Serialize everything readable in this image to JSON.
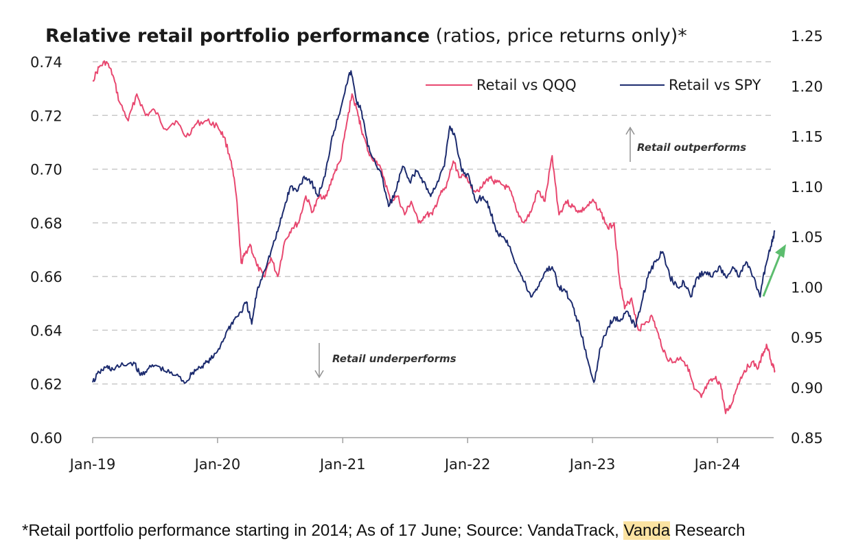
{
  "chart_data": {
    "type": "line",
    "title_bold": "Relative retail portfolio performance",
    "title_rest": " (ratios, price returns only)*",
    "x_tick_labels": [
      "Jan-19",
      "Jan-20",
      "Jan-21",
      "Jan-22",
      "Jan-23",
      "Jan-24"
    ],
    "x_range": [
      "2019-01",
      "2024-06"
    ],
    "y_left": {
      "ticks": [
        "0.60",
        "0.62",
        "0.64",
        "0.66",
        "0.68",
        "0.70",
        "0.72",
        "0.74"
      ],
      "range": [
        0.6,
        0.74
      ]
    },
    "y_right": {
      "ticks": [
        "0.85",
        "0.90",
        "0.95",
        "1.00",
        "1.05",
        "1.10",
        "1.15",
        "1.20",
        "1.25"
      ],
      "range": [
        0.85,
        1.25
      ]
    },
    "grid": "horizontal dashed",
    "legend_placement": "top-right",
    "series": [
      {
        "name": "Retail vs QQQ",
        "axis": "left",
        "color": "#e8476f",
        "points": [
          [
            "2019-01-01",
            0.733
          ],
          [
            "2019-01-20",
            0.738
          ],
          [
            "2019-02-10",
            0.74
          ],
          [
            "2019-03-01",
            0.735
          ],
          [
            "2019-03-20",
            0.725
          ],
          [
            "2019-04-15",
            0.718
          ],
          [
            "2019-05-10",
            0.728
          ],
          [
            "2019-06-05",
            0.72
          ],
          [
            "2019-07-01",
            0.722
          ],
          [
            "2019-08-01",
            0.715
          ],
          [
            "2019-09-01",
            0.718
          ],
          [
            "2019-10-01",
            0.712
          ],
          [
            "2019-11-01",
            0.717
          ],
          [
            "2019-12-01",
            0.718
          ],
          [
            "2020-01-01",
            0.716
          ],
          [
            "2020-01-20",
            0.712
          ],
          [
            "2020-02-10",
            0.703
          ],
          [
            "2020-02-25",
            0.69
          ],
          [
            "2020-03-10",
            0.665
          ],
          [
            "2020-03-20",
            0.668
          ],
          [
            "2020-04-05",
            0.672
          ],
          [
            "2020-04-25",
            0.664
          ],
          [
            "2020-05-15",
            0.66
          ],
          [
            "2020-06-05",
            0.667
          ],
          [
            "2020-06-25",
            0.66
          ],
          [
            "2020-07-15",
            0.673
          ],
          [
            "2020-08-05",
            0.678
          ],
          [
            "2020-08-25",
            0.68
          ],
          [
            "2020-09-15",
            0.69
          ],
          [
            "2020-10-05",
            0.684
          ],
          [
            "2020-10-25",
            0.69
          ],
          [
            "2020-11-15",
            0.69
          ],
          [
            "2020-12-05",
            0.698
          ],
          [
            "2020-12-25",
            0.703
          ],
          [
            "2021-01-10",
            0.715
          ],
          [
            "2021-01-28",
            0.728
          ],
          [
            "2021-02-15",
            0.72
          ],
          [
            "2021-03-01",
            0.713
          ],
          [
            "2021-03-20",
            0.705
          ],
          [
            "2021-04-10",
            0.703
          ],
          [
            "2021-05-01",
            0.697
          ],
          [
            "2021-05-20",
            0.688
          ],
          [
            "2021-06-10",
            0.69
          ],
          [
            "2021-07-01",
            0.683
          ],
          [
            "2021-07-20",
            0.688
          ],
          [
            "2021-08-10",
            0.68
          ],
          [
            "2021-09-01",
            0.683
          ],
          [
            "2021-09-20",
            0.683
          ],
          [
            "2021-10-10",
            0.69
          ],
          [
            "2021-10-30",
            0.693
          ],
          [
            "2021-11-20",
            0.703
          ],
          [
            "2021-12-10",
            0.697
          ],
          [
            "2021-12-30",
            0.697
          ],
          [
            "2022-01-20",
            0.692
          ],
          [
            "2022-02-10",
            0.693
          ],
          [
            "2022-03-05",
            0.697
          ],
          [
            "2022-03-25",
            0.695
          ],
          [
            "2022-04-15",
            0.694
          ],
          [
            "2022-05-05",
            0.692
          ],
          [
            "2022-05-25",
            0.684
          ],
          [
            "2022-06-15",
            0.68
          ],
          [
            "2022-07-05",
            0.684
          ],
          [
            "2022-07-25",
            0.692
          ],
          [
            "2022-08-15",
            0.688
          ],
          [
            "2022-09-05",
            0.705
          ],
          [
            "2022-09-25",
            0.683
          ],
          [
            "2022-10-15",
            0.688
          ],
          [
            "2022-11-05",
            0.686
          ],
          [
            "2022-11-25",
            0.684
          ],
          [
            "2022-12-15",
            0.686
          ],
          [
            "2023-01-05",
            0.688
          ],
          [
            "2023-01-25",
            0.684
          ],
          [
            "2023-02-15",
            0.678
          ],
          [
            "2023-03-05",
            0.68
          ],
          [
            "2023-03-20",
            0.66
          ],
          [
            "2023-04-05",
            0.648
          ],
          [
            "2023-04-25",
            0.652
          ],
          [
            "2023-05-15",
            0.64
          ],
          [
            "2023-06-05",
            0.643
          ],
          [
            "2023-06-25",
            0.645
          ],
          [
            "2023-07-15",
            0.637
          ],
          [
            "2023-08-05",
            0.63
          ],
          [
            "2023-08-25",
            0.628
          ],
          [
            "2023-09-15",
            0.63
          ],
          [
            "2023-10-05",
            0.627
          ],
          [
            "2023-10-25",
            0.618
          ],
          [
            "2023-11-15",
            0.615
          ],
          [
            "2023-12-05",
            0.62
          ],
          [
            "2023-12-25",
            0.622
          ],
          [
            "2024-01-10",
            0.62
          ],
          [
            "2024-01-25",
            0.609
          ],
          [
            "2024-02-10",
            0.612
          ],
          [
            "2024-03-01",
            0.62
          ],
          [
            "2024-03-20",
            0.625
          ],
          [
            "2024-04-10",
            0.628
          ],
          [
            "2024-04-30",
            0.626
          ],
          [
            "2024-05-15",
            0.632
          ],
          [
            "2024-05-25",
            0.634
          ],
          [
            "2024-06-10",
            0.627
          ],
          [
            "2024-06-17",
            0.625
          ]
        ]
      },
      {
        "name": "Retail vs SPY",
        "axis": "right",
        "color": "#1c2b6e",
        "points": [
          [
            "2019-01-01",
            0.905
          ],
          [
            "2019-01-20",
            0.915
          ],
          [
            "2019-02-10",
            0.92
          ],
          [
            "2019-03-01",
            0.918
          ],
          [
            "2019-04-01",
            0.922
          ],
          [
            "2019-05-01",
            0.925
          ],
          [
            "2019-05-20",
            0.912
          ],
          [
            "2019-06-10",
            0.918
          ],
          [
            "2019-07-05",
            0.922
          ],
          [
            "2019-08-01",
            0.916
          ],
          [
            "2019-09-01",
            0.912
          ],
          [
            "2019-10-01",
            0.905
          ],
          [
            "2019-10-20",
            0.915
          ],
          [
            "2019-11-10",
            0.92
          ],
          [
            "2019-12-01",
            0.925
          ],
          [
            "2019-12-20",
            0.93
          ],
          [
            "2020-01-10",
            0.942
          ],
          [
            "2020-02-01",
            0.958
          ],
          [
            "2020-02-20",
            0.968
          ],
          [
            "2020-03-10",
            0.975
          ],
          [
            "2020-03-25",
            0.985
          ],
          [
            "2020-04-10",
            0.963
          ],
          [
            "2020-04-25",
            0.995
          ],
          [
            "2020-05-15",
            1.015
          ],
          [
            "2020-06-05",
            1.035
          ],
          [
            "2020-06-25",
            1.055
          ],
          [
            "2020-07-15",
            1.08
          ],
          [
            "2020-08-01",
            1.1
          ],
          [
            "2020-08-20",
            1.095
          ],
          [
            "2020-09-10",
            1.11
          ],
          [
            "2020-10-01",
            1.105
          ],
          [
            "2020-10-20",
            1.09
          ],
          [
            "2020-11-10",
            1.11
          ],
          [
            "2020-12-01",
            1.15
          ],
          [
            "2020-12-20",
            1.17
          ],
          [
            "2021-01-10",
            1.2
          ],
          [
            "2021-01-25",
            1.215
          ],
          [
            "2021-02-10",
            1.185
          ],
          [
            "2021-02-25",
            1.175
          ],
          [
            "2021-03-15",
            1.14
          ],
          [
            "2021-04-05",
            1.125
          ],
          [
            "2021-04-25",
            1.11
          ],
          [
            "2021-05-15",
            1.08
          ],
          [
            "2021-06-05",
            1.095
          ],
          [
            "2021-06-25",
            1.12
          ],
          [
            "2021-07-15",
            1.105
          ],
          [
            "2021-08-05",
            1.115
          ],
          [
            "2021-08-25",
            1.105
          ],
          [
            "2021-09-15",
            1.09
          ],
          [
            "2021-10-05",
            1.105
          ],
          [
            "2021-10-25",
            1.12
          ],
          [
            "2021-11-10",
            1.16
          ],
          [
            "2021-11-25",
            1.15
          ],
          [
            "2021-12-15",
            1.115
          ],
          [
            "2022-01-05",
            1.11
          ],
          [
            "2022-01-25",
            1.085
          ],
          [
            "2022-02-15",
            1.09
          ],
          [
            "2022-03-05",
            1.08
          ],
          [
            "2022-03-25",
            1.055
          ],
          [
            "2022-04-15",
            1.05
          ],
          [
            "2022-05-05",
            1.04
          ],
          [
            "2022-05-25",
            1.02
          ],
          [
            "2022-06-15",
            1.005
          ],
          [
            "2022-07-05",
            0.99
          ],
          [
            "2022-07-25",
            1.0
          ],
          [
            "2022-08-15",
            1.015
          ],
          [
            "2022-09-05",
            1.02
          ],
          [
            "2022-09-25",
            1.0
          ],
          [
            "2022-10-15",
            0.995
          ],
          [
            "2022-11-05",
            0.98
          ],
          [
            "2022-11-25",
            0.96
          ],
          [
            "2022-12-15",
            0.93
          ],
          [
            "2023-01-05",
            0.905
          ],
          [
            "2023-01-25",
            0.94
          ],
          [
            "2023-02-15",
            0.96
          ],
          [
            "2023-03-05",
            0.97
          ],
          [
            "2023-03-25",
            0.968
          ],
          [
            "2023-04-15",
            0.975
          ],
          [
            "2023-05-05",
            0.96
          ],
          [
            "2023-05-25",
            0.985
          ],
          [
            "2023-06-15",
            1.015
          ],
          [
            "2023-07-05",
            1.025
          ],
          [
            "2023-07-25",
            1.035
          ],
          [
            "2023-08-15",
            1.01
          ],
          [
            "2023-09-05",
            1.0
          ],
          [
            "2023-09-25",
            1.005
          ],
          [
            "2023-10-15",
            0.99
          ],
          [
            "2023-11-05",
            1.01
          ],
          [
            "2023-11-25",
            1.015
          ],
          [
            "2023-12-15",
            1.01
          ],
          [
            "2024-01-05",
            1.02
          ],
          [
            "2024-01-25",
            1.01
          ],
          [
            "2024-02-15",
            1.02
          ],
          [
            "2024-03-05",
            1.01
          ],
          [
            "2024-03-25",
            1.025
          ],
          [
            "2024-04-15",
            1.01
          ],
          [
            "2024-05-05",
            0.99
          ],
          [
            "2024-05-20",
            1.02
          ],
          [
            "2024-06-05",
            1.04
          ],
          [
            "2024-06-17",
            1.055
          ]
        ]
      }
    ],
    "annotations": {
      "outperform": "Retail outperforms",
      "underperform": "Retail underperforms"
    },
    "trend_arrow_color": "#5cbd6e"
  },
  "footnote": {
    "before": "*Retail portfolio performance starting in 2014; As of 17 June; Source: VandaTrack, ",
    "highlight": "Vanda",
    "after": " Research"
  }
}
